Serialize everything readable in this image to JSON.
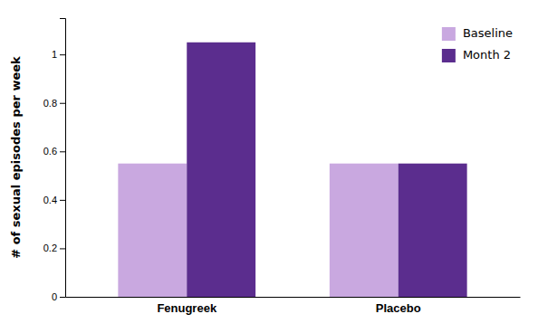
{
  "chart_data": {
    "type": "bar",
    "categories": [
      "Fenugreek",
      "Placebo"
    ],
    "series": [
      {
        "name": "Baseline",
        "color": "#c9a8e0",
        "values": [
          0.55,
          0.55
        ]
      },
      {
        "name": "Month 2",
        "color": "#5b2d8e",
        "values": [
          1.05,
          0.55
        ]
      }
    ],
    "y_label": "# of sexual episodes per week",
    "ylim": [
      0,
      1.15
    ],
    "yticks": [
      0,
      0.2,
      0.4,
      0.6,
      0.8,
      1
    ],
    "legend": "upper right"
  }
}
